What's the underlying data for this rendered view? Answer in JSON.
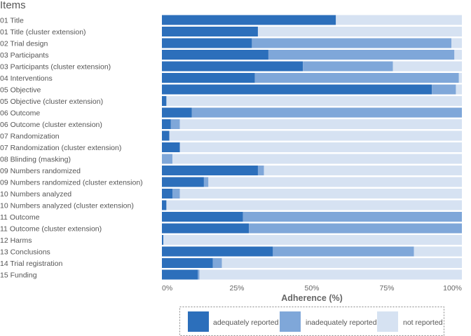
{
  "chart_data": {
    "type": "bar",
    "orientation": "horizontal",
    "stacked": true,
    "title": "Items",
    "xlabel": "Adherence (%)",
    "ylabel": "",
    "xlim": [
      0,
      100
    ],
    "xticks": [
      "0%",
      "25%",
      "50%",
      "75%",
      "100%"
    ],
    "xtick_values": [
      0,
      25,
      50,
      75,
      100
    ],
    "legend_position": "bottom",
    "categories": [
      "01 Title",
      "01 Title (cluster extension)",
      "02 Trial design",
      "03 Participants",
      "03 Participants (cluster extension)",
      "04 Interventions",
      "05 Objective",
      "05 Objective (cluster extension)",
      "06 Outcome",
      "06 Outcome (cluster extension)",
      "07 Randomization",
      "07 Randomization (cluster extension)",
      "08 Blinding (masking)",
      "09 Numbers randomized",
      "09 Numbers randomized (cluster extension)",
      "10 Numbers analyzed",
      "10 Numbers analyzed (cluster extension)",
      "11 Outcome",
      "11 Outcome (cluster extension)",
      "12 Harms",
      "13 Conclusions",
      "14 Trial registration",
      "15 Funding"
    ],
    "series": [
      {
        "name": "adequately reported",
        "color": "#2c6fbb",
        "values": [
          58,
          32,
          30,
          35.5,
          47,
          31,
          90,
          1.5,
          10,
          3,
          2.5,
          6,
          0,
          32,
          14,
          3.5,
          1.5,
          27,
          29,
          0.5,
          37,
          17,
          12
        ]
      },
      {
        "name": "inadequately reported",
        "color": "#7fa7d9",
        "values": [
          0,
          0,
          66.5,
          62,
          30,
          68,
          8,
          0,
          90,
          3,
          0,
          0,
          3.5,
          2,
          1.5,
          2.5,
          0,
          73,
          71,
          0,
          47,
          3,
          0.5
        ]
      },
      {
        "name": "not reported",
        "color": "#d6e2f2",
        "values": [
          42,
          68,
          3.5,
          2.5,
          23,
          1,
          2,
          98.5,
          0,
          94,
          97.5,
          94,
          96.5,
          66,
          84.5,
          94,
          98.5,
          0,
          0,
          99.5,
          16,
          80,
          87.5
        ]
      }
    ]
  }
}
